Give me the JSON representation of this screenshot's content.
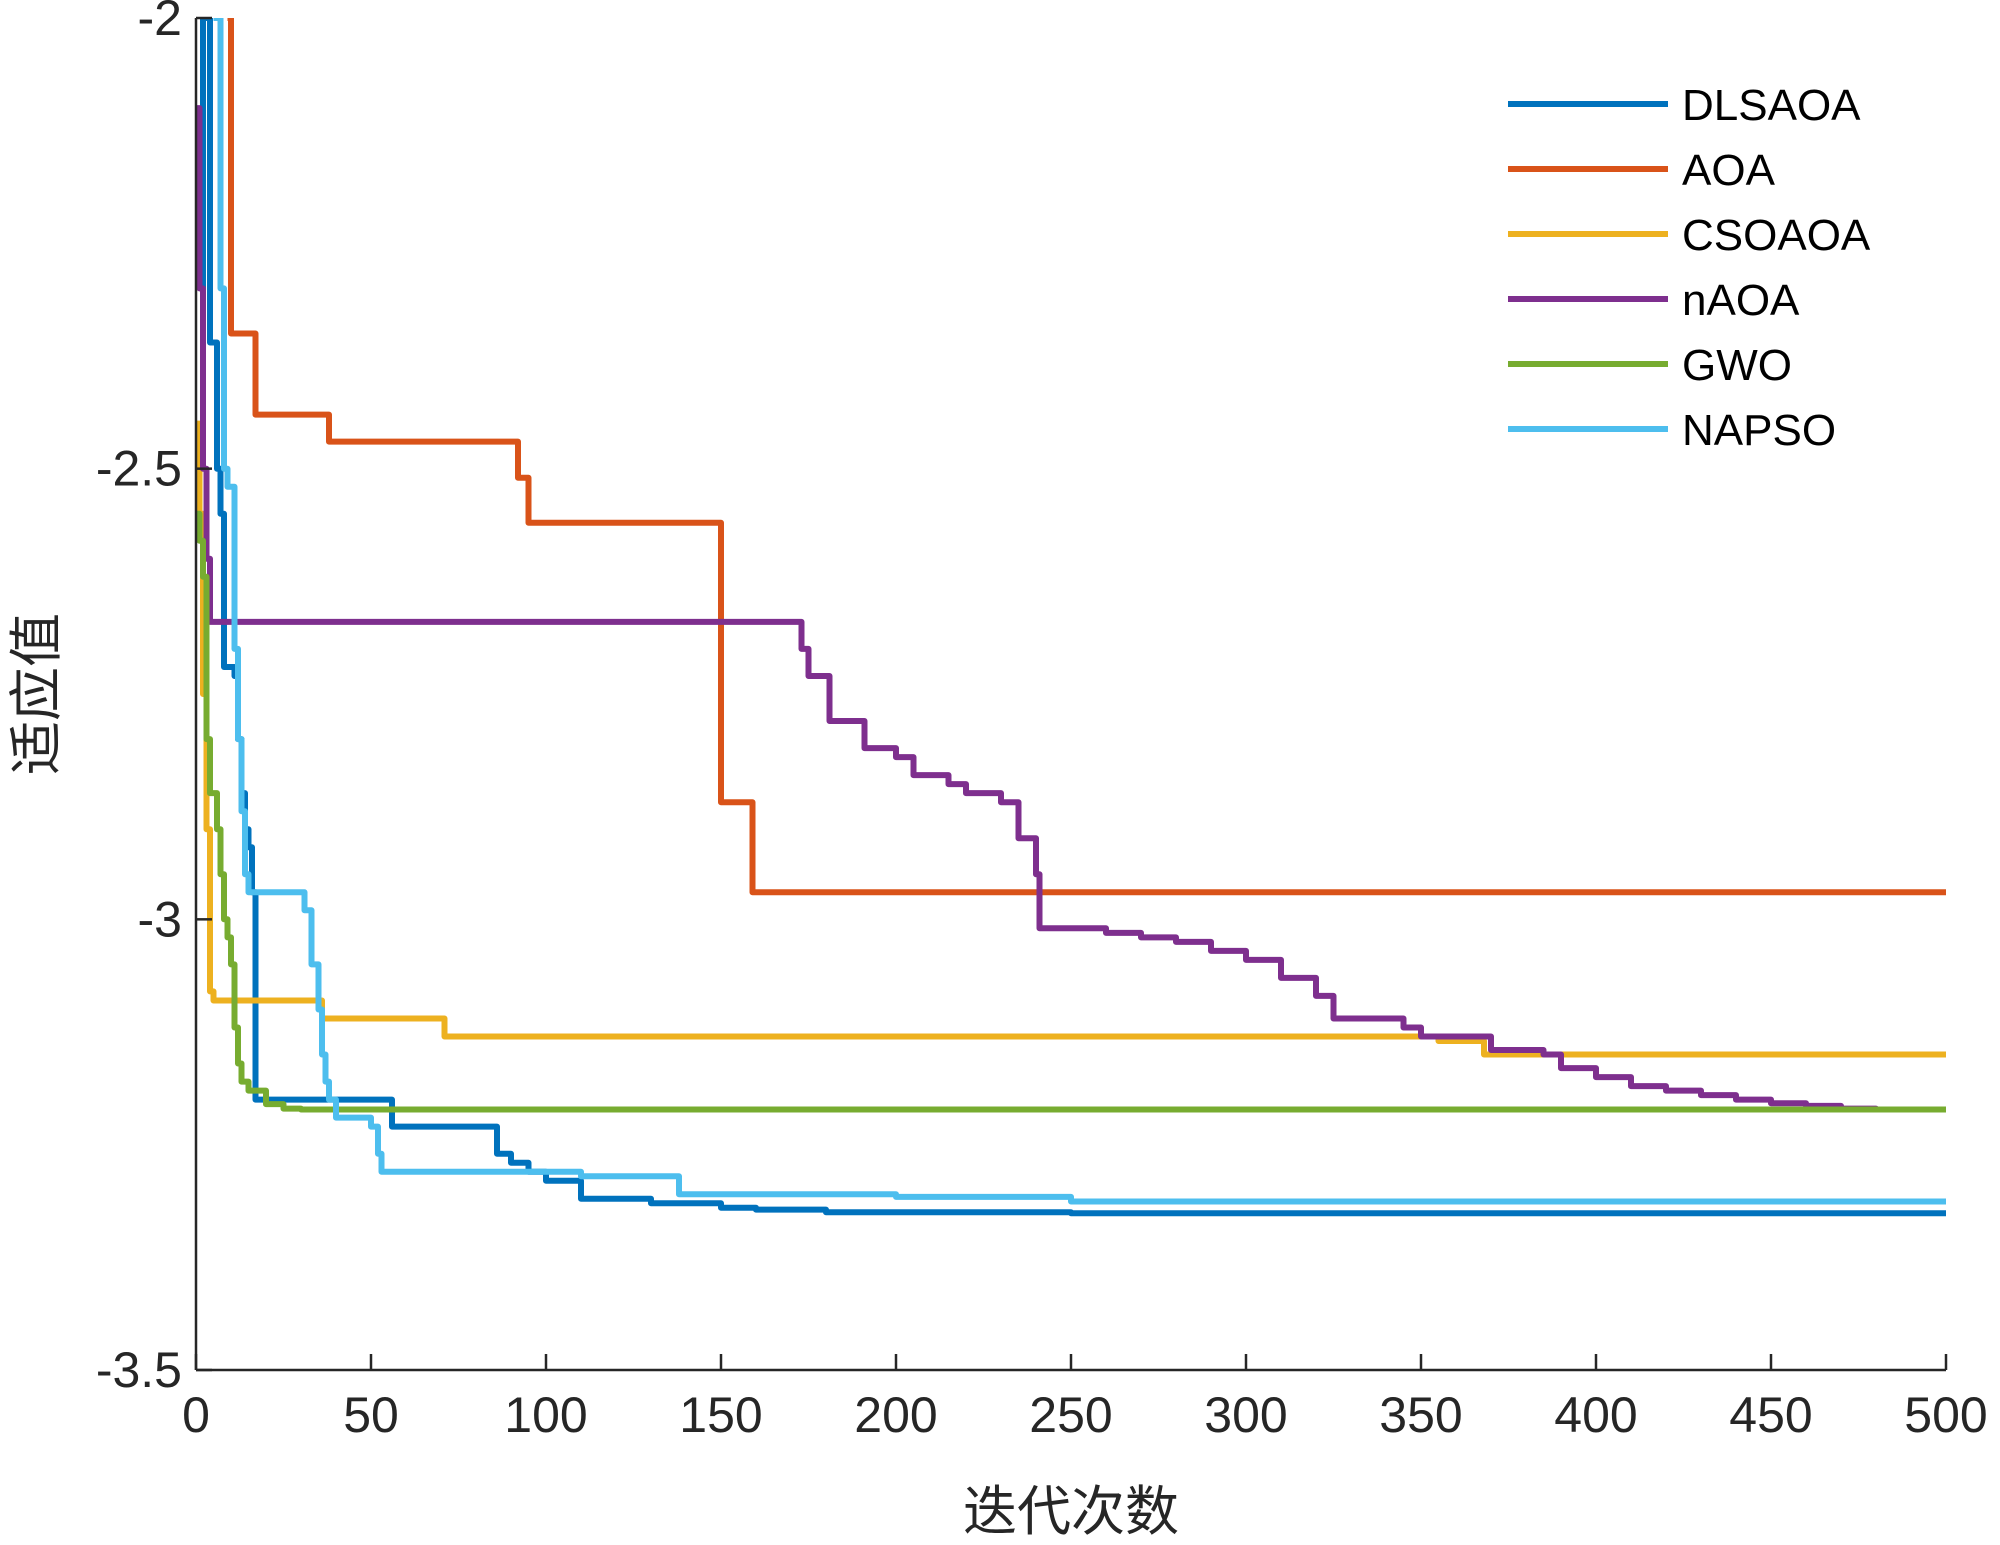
{
  "chart_data": {
    "type": "line",
    "title": "",
    "xlabel": "迭代次数",
    "ylabel": "适应值",
    "xlim": [
      0,
      500
    ],
    "ylim": [
      -3.5,
      -2
    ],
    "xticks": [
      0,
      50,
      100,
      150,
      200,
      250,
      300,
      350,
      400,
      450,
      500
    ],
    "xtick_labels": [
      "0",
      "50",
      "100",
      "150",
      "200",
      "250",
      "300",
      "350",
      "400",
      "450",
      "500"
    ],
    "yticks": [
      -2,
      -2.5,
      -3,
      -3.5
    ],
    "ytick_labels": [
      "-2",
      "-2.5",
      "-3",
      "-3.5"
    ],
    "grid": false,
    "legend_position": "top-right",
    "series": [
      {
        "name": "DLSAOA",
        "color": "#0072BD",
        "points": [
          [
            1,
            -2.3
          ],
          [
            2,
            -2
          ],
          [
            3,
            -2
          ],
          [
            4,
            -2.36
          ],
          [
            5,
            -2.36
          ],
          [
            6,
            -2.5
          ],
          [
            7,
            -2.55
          ],
          [
            8,
            -2.72
          ],
          [
            10,
            -2.72
          ],
          [
            11,
            -2.73
          ],
          [
            12,
            -2.8
          ],
          [
            13,
            -2.86
          ],
          [
            14,
            -2.9
          ],
          [
            15,
            -2.92
          ],
          [
            16,
            -2.97
          ],
          [
            17,
            -3.2
          ],
          [
            20,
            -3.2
          ],
          [
            30,
            -3.2
          ],
          [
            40,
            -3.2
          ],
          [
            50,
            -3.2
          ],
          [
            55,
            -3.2
          ],
          [
            56,
            -3.23
          ],
          [
            60,
            -3.23
          ],
          [
            70,
            -3.23
          ],
          [
            80,
            -3.23
          ],
          [
            85,
            -3.23
          ],
          [
            86,
            -3.26
          ],
          [
            90,
            -3.27
          ],
          [
            95,
            -3.28
          ],
          [
            100,
            -3.29
          ],
          [
            105,
            -3.29
          ],
          [
            110,
            -3.31
          ],
          [
            120,
            -3.31
          ],
          [
            125,
            -3.31
          ],
          [
            130,
            -3.315
          ],
          [
            140,
            -3.315
          ],
          [
            150,
            -3.32
          ],
          [
            160,
            -3.322
          ],
          [
            180,
            -3.325
          ],
          [
            200,
            -3.325
          ],
          [
            250,
            -3.326
          ],
          [
            300,
            -3.326
          ],
          [
            400,
            -3.326
          ],
          [
            500,
            -3.326
          ]
        ]
      },
      {
        "name": "AOA",
        "color": "#D95319",
        "points": [
          [
            9,
            -2
          ],
          [
            10,
            -2.35
          ],
          [
            16,
            -2.35
          ],
          [
            17,
            -2.44
          ],
          [
            37,
            -2.44
          ],
          [
            38,
            -2.47
          ],
          [
            91,
            -2.47
          ],
          [
            92,
            -2.51
          ],
          [
            94,
            -2.51
          ],
          [
            95,
            -2.56
          ],
          [
            149,
            -2.56
          ],
          [
            150,
            -2.87
          ],
          [
            158,
            -2.87
          ],
          [
            159,
            -2.97
          ],
          [
            200,
            -2.97
          ],
          [
            300,
            -2.97
          ],
          [
            400,
            -2.97
          ],
          [
            500,
            -2.97
          ]
        ]
      },
      {
        "name": "CSOAOA",
        "color": "#EDB120",
        "points": [
          [
            0,
            -2.45
          ],
          [
            1,
            -2.55
          ],
          [
            2,
            -2.75
          ],
          [
            3,
            -2.9
          ],
          [
            4,
            -3.08
          ],
          [
            5,
            -3.09
          ],
          [
            10,
            -3.09
          ],
          [
            20,
            -3.09
          ],
          [
            30,
            -3.09
          ],
          [
            35,
            -3.09
          ],
          [
            36,
            -3.11
          ],
          [
            50,
            -3.11
          ],
          [
            70,
            -3.11
          ],
          [
            71,
            -3.13
          ],
          [
            100,
            -3.13
          ],
          [
            200,
            -3.13
          ],
          [
            300,
            -3.13
          ],
          [
            350,
            -3.13
          ],
          [
            355,
            -3.135
          ],
          [
            365,
            -3.135
          ],
          [
            368,
            -3.15
          ],
          [
            400,
            -3.15
          ],
          [
            450,
            -3.15
          ],
          [
            500,
            -3.15
          ]
        ]
      },
      {
        "name": "nAOA",
        "color": "#7E2F8E",
        "points": [
          [
            0,
            -2.1
          ],
          [
            1,
            -2.3
          ],
          [
            2,
            -2.5
          ],
          [
            3,
            -2.6
          ],
          [
            4,
            -2.67
          ],
          [
            50,
            -2.67
          ],
          [
            100,
            -2.67
          ],
          [
            150,
            -2.67
          ],
          [
            172,
            -2.67
          ],
          [
            173,
            -2.7
          ],
          [
            175,
            -2.73
          ],
          [
            180,
            -2.73
          ],
          [
            181,
            -2.78
          ],
          [
            190,
            -2.78
          ],
          [
            191,
            -2.81
          ],
          [
            200,
            -2.82
          ],
          [
            205,
            -2.84
          ],
          [
            215,
            -2.85
          ],
          [
            220,
            -2.86
          ],
          [
            230,
            -2.87
          ],
          [
            235,
            -2.91
          ],
          [
            240,
            -2.95
          ],
          [
            241,
            -3.01
          ],
          [
            250,
            -3.01
          ],
          [
            260,
            -3.015
          ],
          [
            270,
            -3.02
          ],
          [
            280,
            -3.025
          ],
          [
            290,
            -3.035
          ],
          [
            300,
            -3.045
          ],
          [
            310,
            -3.065
          ],
          [
            320,
            -3.085
          ],
          [
            325,
            -3.11
          ],
          [
            330,
            -3.11
          ],
          [
            345,
            -3.12
          ],
          [
            350,
            -3.13
          ],
          [
            365,
            -3.13
          ],
          [
            370,
            -3.145
          ],
          [
            380,
            -3.145
          ],
          [
            385,
            -3.15
          ],
          [
            390,
            -3.165
          ],
          [
            400,
            -3.175
          ],
          [
            410,
            -3.185
          ],
          [
            420,
            -3.19
          ],
          [
            430,
            -3.195
          ],
          [
            440,
            -3.2
          ],
          [
            450,
            -3.204
          ],
          [
            460,
            -3.207
          ],
          [
            470,
            -3.21
          ],
          [
            480,
            -3.211
          ],
          [
            490,
            -3.211
          ],
          [
            500,
            -3.211
          ]
        ]
      },
      {
        "name": "GWO",
        "color": "#77AC30",
        "points": [
          [
            0,
            -2.55
          ],
          [
            1,
            -2.58
          ],
          [
            2,
            -2.62
          ],
          [
            3,
            -2.8
          ],
          [
            4,
            -2.86
          ],
          [
            5,
            -2.86
          ],
          [
            6,
            -2.9
          ],
          [
            7,
            -2.95
          ],
          [
            8,
            -3.0
          ],
          [
            9,
            -3.02
          ],
          [
            10,
            -3.05
          ],
          [
            11,
            -3.12
          ],
          [
            12,
            -3.16
          ],
          [
            13,
            -3.18
          ],
          [
            15,
            -3.19
          ],
          [
            20,
            -3.205
          ],
          [
            25,
            -3.21
          ],
          [
            30,
            -3.211
          ],
          [
            50,
            -3.211
          ],
          [
            100,
            -3.211
          ],
          [
            200,
            -3.211
          ],
          [
            300,
            -3.211
          ],
          [
            400,
            -3.211
          ],
          [
            500,
            -3.211
          ]
        ]
      },
      {
        "name": "NAPSO",
        "color": "#4DBEEE",
        "points": [
          [
            5,
            -2
          ],
          [
            6,
            -2
          ],
          [
            7,
            -2.3
          ],
          [
            8,
            -2.5
          ],
          [
            9,
            -2.52
          ],
          [
            10,
            -2.52
          ],
          [
            11,
            -2.7
          ],
          [
            12,
            -2.8
          ],
          [
            13,
            -2.88
          ],
          [
            14,
            -2.95
          ],
          [
            15,
            -2.97
          ],
          [
            20,
            -2.97
          ],
          [
            28,
            -2.97
          ],
          [
            31,
            -2.99
          ],
          [
            33,
            -3.05
          ],
          [
            35,
            -3.1
          ],
          [
            36,
            -3.15
          ],
          [
            37,
            -3.18
          ],
          [
            38,
            -3.2
          ],
          [
            40,
            -3.22
          ],
          [
            45,
            -3.22
          ],
          [
            50,
            -3.23
          ],
          [
            52,
            -3.26
          ],
          [
            53,
            -3.28
          ],
          [
            60,
            -3.28
          ],
          [
            80,
            -3.28
          ],
          [
            100,
            -3.28
          ],
          [
            110,
            -3.285
          ],
          [
            120,
            -3.285
          ],
          [
            137,
            -3.285
          ],
          [
            138,
            -3.305
          ],
          [
            150,
            -3.305
          ],
          [
            200,
            -3.308
          ],
          [
            250,
            -3.313
          ],
          [
            300,
            -3.313
          ],
          [
            400,
            -3.313
          ],
          [
            500,
            -3.313
          ]
        ]
      }
    ]
  }
}
